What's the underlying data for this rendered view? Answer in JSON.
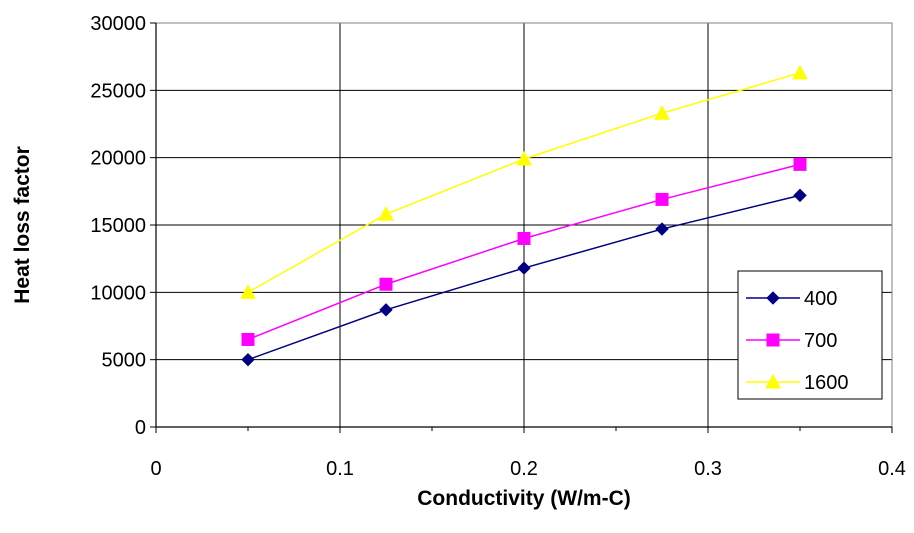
{
  "chart_data": {
    "type": "line",
    "title": "",
    "xlabel": "Conductivity (W/m-C)",
    "ylabel": "Heat loss factor",
    "xlim": [
      0,
      0.4
    ],
    "ylim": [
      0,
      30000
    ],
    "xticks": [
      "0",
      "0.1",
      "0.2",
      "0.3",
      "0.4"
    ],
    "yticks": [
      "0",
      "5000",
      "10000",
      "15000",
      "20000",
      "25000",
      "30000"
    ],
    "grid": true,
    "legend_position": "right",
    "x": [
      0.05,
      0.125,
      0.2,
      0.275,
      0.35
    ],
    "series": [
      {
        "name": "400",
        "values": [
          5000,
          8700,
          11800,
          14700,
          17200
        ],
        "color": "#000080",
        "marker": "diamond"
      },
      {
        "name": "700",
        "values": [
          6500,
          10600,
          14000,
          16900,
          19500
        ],
        "color": "#ff00ff",
        "marker": "square"
      },
      {
        "name": "1600",
        "values": [
          10000,
          15800,
          19900,
          23300,
          26300
        ],
        "color": "#ffff00",
        "marker": "triangle"
      }
    ]
  }
}
